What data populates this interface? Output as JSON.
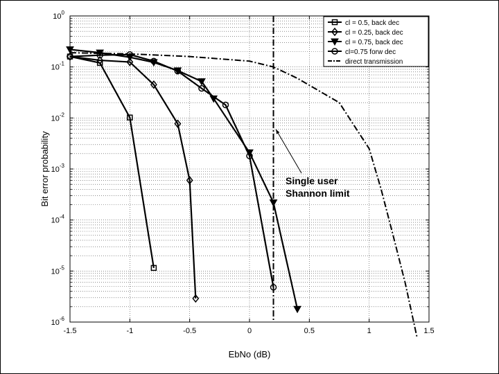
{
  "chart_data": {
    "type": "line",
    "xlabel": "EbNo (dB)",
    "ylabel": "Bit error probability",
    "xlim": [
      -1.5,
      1.5
    ],
    "ylim": [
      1e-06,
      1
    ],
    "yscale": "log",
    "grid": true,
    "legend_position": "top-right",
    "x_tick_labels": [
      "-1.5",
      "-1",
      "-0.5",
      "0",
      "0.5",
      "1",
      "1.5"
    ],
    "x_ticks": [
      -1.5,
      -1,
      -0.5,
      0,
      0.5,
      1,
      1.5
    ],
    "y_ticks": [
      {
        "value": 1,
        "base": "10",
        "exp": "0"
      },
      {
        "value": 0.1,
        "base": "10",
        "exp": "-1"
      },
      {
        "value": 0.01,
        "base": "10",
        "exp": "-2"
      },
      {
        "value": 0.001,
        "base": "10",
        "exp": "-3"
      },
      {
        "value": 0.0001,
        "base": "10",
        "exp": "-4"
      },
      {
        "value": 1e-05,
        "base": "10",
        "exp": "-5"
      },
      {
        "value": 1e-06,
        "base": "10",
        "exp": "-6"
      }
    ],
    "series": [
      {
        "name": "cl = 0.5, back dec",
        "marker": "square",
        "x": [
          -1.5,
          -1.25,
          -1.0,
          -0.8
        ],
        "y": [
          0.16,
          0.12,
          0.0102,
          1.15e-05
        ]
      },
      {
        "name": "cl = 0.25, back dec",
        "marker": "diamond",
        "x": [
          -1.5,
          -1.25,
          -1.0,
          -0.8,
          -0.6,
          -0.5,
          -0.45
        ],
        "y": [
          0.16,
          0.135,
          0.125,
          0.045,
          0.0077,
          0.0006,
          2.9e-06
        ]
      },
      {
        "name": "cl = 0.75, back dec",
        "marker": "triangle-down",
        "x": [
          -1.5,
          -1.25,
          -1.0,
          -0.8,
          -0.6,
          -0.4,
          -0.3,
          0.0,
          0.2,
          0.4
        ],
        "y": [
          0.22,
          0.19,
          0.155,
          0.123,
          0.085,
          0.052,
          0.024,
          0.0021,
          0.00022,
          1.8e-06
        ]
      },
      {
        "name": "cl=0.75 forw dec",
        "marker": "circle",
        "x": [
          -1.5,
          -1.25,
          -1.0,
          -0.8,
          -0.6,
          -0.4,
          -0.2,
          0.0,
          0.2
        ],
        "y": [
          0.16,
          0.17,
          0.175,
          0.13,
          0.083,
          0.038,
          0.018,
          0.0018,
          4.8e-06
        ]
      },
      {
        "name": "direct transmission",
        "marker": "none",
        "line_style": "dash-dot",
        "x": [
          -1.5,
          -1.0,
          -0.5,
          0.0,
          0.2,
          0.4,
          0.75,
          1.0,
          1.1,
          1.2,
          1.3,
          1.4
        ],
        "y": [
          0.19,
          0.18,
          0.16,
          0.13,
          0.1,
          0.06,
          0.02,
          0.0025,
          0.0004,
          5e-05,
          6e-06,
          5e-07
        ]
      }
    ],
    "vertical_line": {
      "x": 0.2,
      "style": "dash-dot"
    },
    "annotation": {
      "lines": [
        "Single user",
        "Shannon limit"
      ],
      "arrow_to": {
        "x": 0.22,
        "y": 0.006
      }
    }
  }
}
